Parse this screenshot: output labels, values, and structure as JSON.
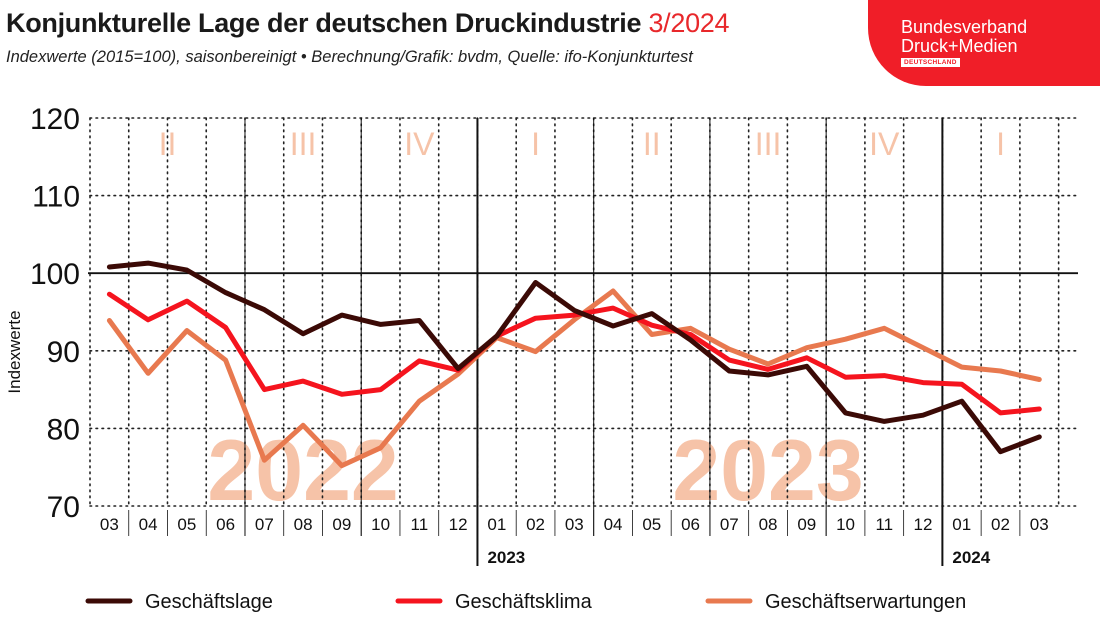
{
  "header": {
    "title_main": "Konjunkturelle Lage der deutschen Druckindustrie",
    "title_accent": "3/2024",
    "subtitle": "Indexwerte (2015=100), saisonbereinigt  •  Berechnung/Grafik: bvdm, Quelle: ifo-Konjunkturtest"
  },
  "logo": {
    "line1": "Bundesverband",
    "line2": "Druck+Medien",
    "tag": "DEUTSCHLAND"
  },
  "colors": {
    "geschaeftslage": "#3b0a06",
    "geschaeftsklima": "#f5141e",
    "geschaeftserwartungen": "#e8794f",
    "quarter_label": "#f6c3a8",
    "year_watermark": "#f6c3a8",
    "logo_bg": "#f01e28"
  },
  "chart_data": {
    "type": "line",
    "ylabel": "Indexwerte",
    "ylim": [
      70,
      120
    ],
    "yticks": [
      70,
      80,
      90,
      100,
      110,
      120
    ],
    "reference_line": 100,
    "grid": "dotted",
    "legend_position": "bottom",
    "categories": [
      "03",
      "04",
      "05",
      "06",
      "07",
      "08",
      "09",
      "10",
      "11",
      "12",
      "01",
      "02",
      "03",
      "04",
      "05",
      "06",
      "07",
      "08",
      "09",
      "10",
      "11",
      "12",
      "01",
      "02",
      "03"
    ],
    "year_labels": [
      {
        "label": "2023",
        "start_index": 10
      },
      {
        "label": "2024",
        "start_index": 22
      }
    ],
    "year_watermarks": [
      {
        "label": "2022",
        "center_index": 5
      },
      {
        "label": "2023",
        "center_index": 17
      }
    ],
    "quarters": [
      {
        "label": "II",
        "start": 0,
        "end": 3
      },
      {
        "label": "III",
        "start": 4,
        "end": 6
      },
      {
        "label": "IV",
        "start": 7,
        "end": 9
      },
      {
        "label": "I",
        "start": 10,
        "end": 12
      },
      {
        "label": "II",
        "start": 13,
        "end": 15
      },
      {
        "label": "III",
        "start": 16,
        "end": 18
      },
      {
        "label": "IV",
        "start": 19,
        "end": 21
      },
      {
        "label": "I",
        "start": 22,
        "end": 24
      }
    ],
    "series": [
      {
        "name": "Geschäftslage",
        "key": "geschaeftslage",
        "values": [
          100.8,
          101.3,
          100.4,
          97.5,
          95.3,
          92.2,
          94.6,
          93.4,
          93.9,
          87.7,
          91.9,
          98.8,
          95.2,
          93.2,
          94.8,
          91.4,
          87.4,
          86.9,
          88.0,
          82.0,
          80.9,
          81.7,
          83.5,
          77.0,
          78.9
        ]
      },
      {
        "name": "Geschäftsklima",
        "key": "geschaeftsklima",
        "values": [
          97.3,
          94.0,
          96.4,
          93.0,
          85.0,
          86.1,
          84.4,
          85.0,
          88.7,
          87.5,
          91.9,
          94.2,
          94.6,
          95.5,
          93.3,
          92.1,
          88.8,
          87.6,
          89.1,
          86.6,
          86.8,
          85.9,
          85.7,
          82.0,
          82.5
        ]
      },
      {
        "name": "Geschäftserwartungen",
        "key": "geschaeftserwartungen",
        "values": [
          93.9,
          87.1,
          92.6,
          88.8,
          75.9,
          80.4,
          75.2,
          77.5,
          83.5,
          87.0,
          91.7,
          89.9,
          94.0,
          97.7,
          92.1,
          92.9,
          90.2,
          88.3,
          90.4,
          91.5,
          92.9,
          90.4,
          87.9,
          87.4,
          86.3
        ]
      }
    ]
  }
}
